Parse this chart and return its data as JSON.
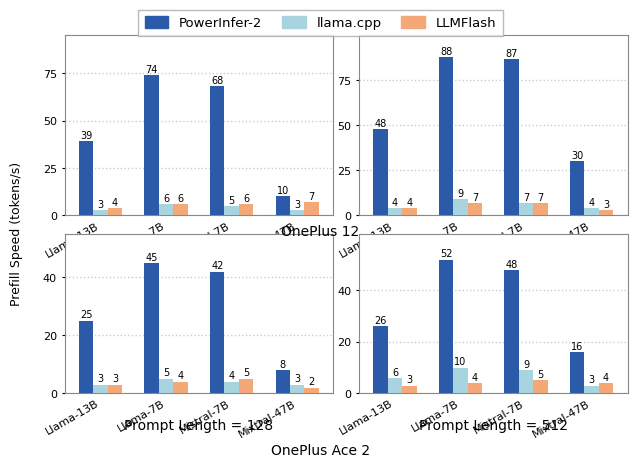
{
  "subplots": [
    {
      "prompt_label": "",
      "categories": [
        "Llama-13B",
        "Llama-7B",
        "Mistral-7B",
        "Mixtral-47B"
      ],
      "powerinfer2": [
        39,
        74,
        68,
        10
      ],
      "llamacpp": [
        3,
        6,
        5,
        3
      ],
      "llmflash": [
        4,
        6,
        6,
        7
      ],
      "ylim": [
        0,
        95
      ],
      "yticks": [
        0,
        25,
        50,
        75
      ]
    },
    {
      "prompt_label": "",
      "categories": [
        "Llama-13B",
        "Llama-7B",
        "Mistral-7B",
        "Mixtral-47B"
      ],
      "powerinfer2": [
        48,
        88,
        87,
        30
      ],
      "llamacpp": [
        4,
        9,
        7,
        4
      ],
      "llmflash": [
        4,
        7,
        7,
        3
      ],
      "ylim": [
        0,
        100
      ],
      "yticks": [
        0,
        25,
        50,
        75
      ]
    },
    {
      "prompt_label": "Prompt Length = 128",
      "categories": [
        "Llama-13B",
        "Llama-7B",
        "Mistral-7B",
        "Mixtral-47B"
      ],
      "powerinfer2": [
        25,
        45,
        42,
        8
      ],
      "llamacpp": [
        3,
        5,
        4,
        3
      ],
      "llmflash": [
        3,
        4,
        5,
        2
      ],
      "ylim": [
        0,
        55
      ],
      "yticks": [
        0,
        20,
        40
      ]
    },
    {
      "prompt_label": "Prompt Length = 512",
      "categories": [
        "Llama-13B",
        "Llama-7B",
        "Mistral-7B",
        "Mixtral-47B"
      ],
      "powerinfer2": [
        26,
        52,
        48,
        16
      ],
      "llamacpp": [
        6,
        10,
        9,
        3
      ],
      "llmflash": [
        3,
        4,
        5,
        4
      ],
      "ylim": [
        0,
        62
      ],
      "yticks": [
        0,
        20,
        40
      ]
    }
  ],
  "colors": {
    "powerinfer2": "#2B5BA8",
    "llamacpp": "#A8D4E0",
    "llmflash": "#F4A878"
  },
  "legend_labels": [
    "PowerInfer-2",
    "llama.cpp",
    "LLMFlash"
  ],
  "ylabel": "Prefill Speed (tokens/s)",
  "device_row1": "OnePlus 12",
  "device_row2": "OnePlus Ace 2",
  "bar_width": 0.22,
  "background_color": "#ffffff",
  "subplot_bg": "#ffffff",
  "grid_color": "#cccccc",
  "label_fontsize": 7.0,
  "tick_fontsize": 8.0,
  "device_label_fontsize": 10.0,
  "prompt_label_fontsize": 10.0,
  "legend_fontsize": 9.5
}
